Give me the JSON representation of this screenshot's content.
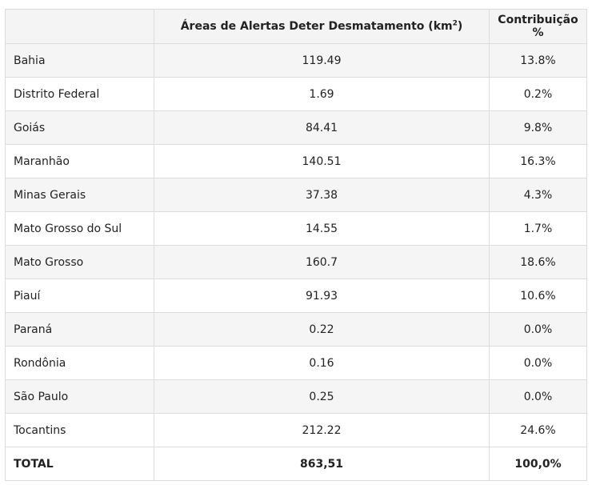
{
  "table": {
    "headers": {
      "state": "",
      "area_main": "Áreas de Alertas Deter Desmatamento (km",
      "area_sup": "2",
      "area_close": ")",
      "contribution": "Contribuição %"
    },
    "rows": [
      {
        "state": "Bahia",
        "area": "119.49",
        "pct": "13.8%"
      },
      {
        "state": "Distrito Federal",
        "area": "1.69",
        "pct": "0.2%"
      },
      {
        "state": "Goiás",
        "area": "84.41",
        "pct": "9.8%"
      },
      {
        "state": "Maranhão",
        "area": "140.51",
        "pct": "16.3%"
      },
      {
        "state": "Minas Gerais",
        "area": "37.38",
        "pct": "4.3%"
      },
      {
        "state": "Mato Grosso do Sul",
        "area": "14.55",
        "pct": "1.7%"
      },
      {
        "state": "Mato Grosso",
        "area": "160.7",
        "pct": "18.6%"
      },
      {
        "state": "Piauí",
        "area": "91.93",
        "pct": "10.6%"
      },
      {
        "state": "Paraná",
        "area": "0.22",
        "pct": "0.0%"
      },
      {
        "state": "Rondônia",
        "area": "0.16",
        "pct": "0.0%"
      },
      {
        "state": "São Paulo",
        "area": "0.25",
        "pct": "0.0%"
      },
      {
        "state": "Tocantins",
        "area": "212.22",
        "pct": "24.6%"
      }
    ],
    "total": {
      "label": "TOTAL",
      "area": "863,51",
      "pct": "100,0%"
    }
  }
}
